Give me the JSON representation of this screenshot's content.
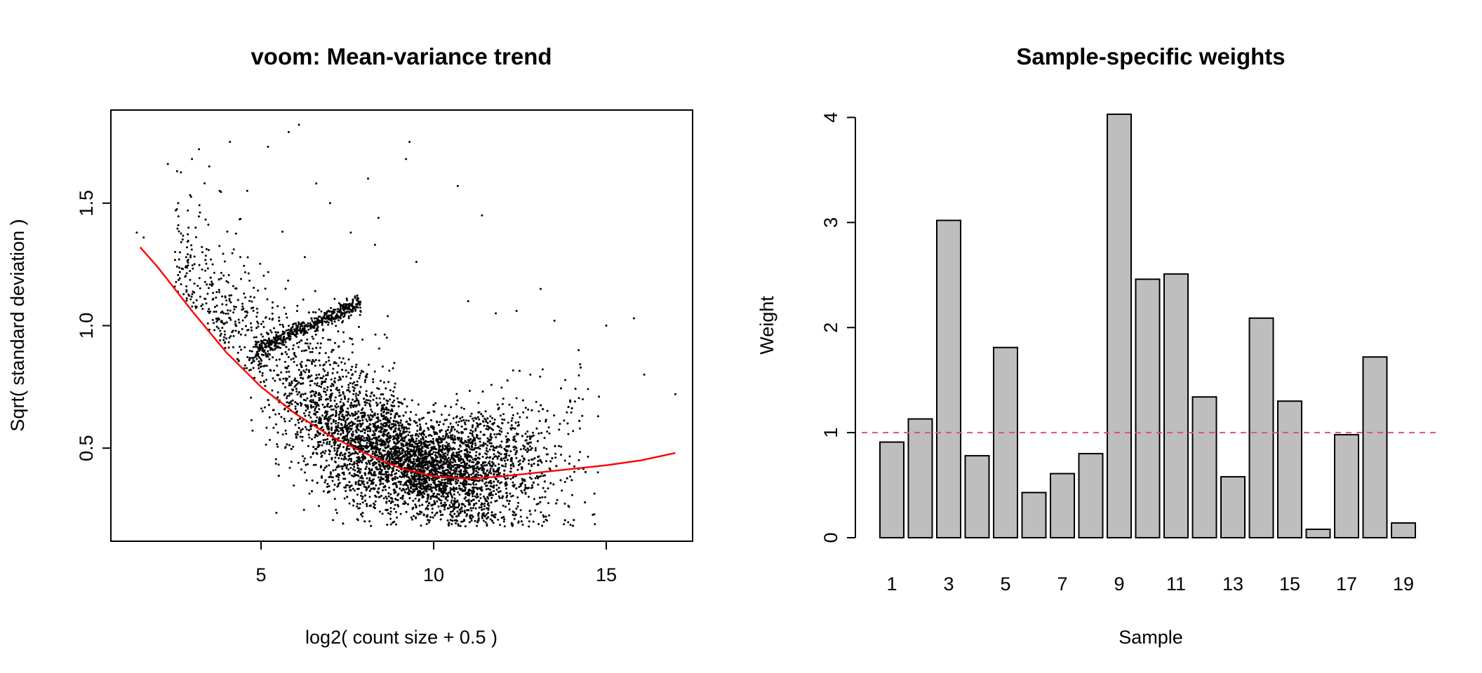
{
  "chart_data": [
    {
      "type": "scatter",
      "title": "voom: Mean-variance trend",
      "xlabel": "log2( count size + 0.5 )",
      "ylabel": "Sqrt( standard deviation )",
      "xlim": [
        0.65,
        17.5
      ],
      "ylim": [
        0.12,
        1.88
      ],
      "xticks": [
        5,
        10,
        15
      ],
      "yticks": [
        0.5,
        1.0,
        1.5
      ],
      "xtick_labels": [
        "5",
        "10",
        "15"
      ],
      "ytick_labels": [
        "0.5",
        "1.0",
        "1.5"
      ],
      "grid": false,
      "point_color": "#000000",
      "trend_color": "#ff0000",
      "trend_line": {
        "x": [
          1.5,
          2,
          3,
          4,
          5,
          6,
          7,
          8,
          9,
          10,
          11,
          12,
          13,
          14,
          15,
          16,
          17
        ],
        "y": [
          1.32,
          1.24,
          1.06,
          0.89,
          0.75,
          0.64,
          0.55,
          0.48,
          0.42,
          0.385,
          0.375,
          0.385,
          0.4,
          0.415,
          0.43,
          0.45,
          0.48
        ]
      },
      "points": [
        [
          1.4,
          1.38
        ],
        [
          1.6,
          1.36
        ],
        [
          2.3,
          1.66
        ],
        [
          2.6,
          1.5
        ],
        [
          3.0,
          1.68
        ],
        [
          3.2,
          1.72
        ],
        [
          3.5,
          1.65
        ],
        [
          3.8,
          1.55
        ],
        [
          4.1,
          1.75
        ],
        [
          4.6,
          1.55
        ],
        [
          5.2,
          1.73
        ],
        [
          5.8,
          1.79
        ],
        [
          6.1,
          1.82
        ],
        [
          6.6,
          1.58
        ],
        [
          7.0,
          1.5
        ],
        [
          8.1,
          1.6
        ],
        [
          8.4,
          1.44
        ],
        [
          9.3,
          1.75
        ],
        [
          9.2,
          1.68
        ],
        [
          10.7,
          1.57
        ],
        [
          11.4,
          1.45
        ],
        [
          7.6,
          1.38
        ],
        [
          8.3,
          1.33
        ],
        [
          9.5,
          1.26
        ],
        [
          11.0,
          1.1
        ],
        [
          11.8,
          1.05
        ],
        [
          12.4,
          1.06
        ],
        [
          13.1,
          1.15
        ],
        [
          15.0,
          1.0
        ],
        [
          15.8,
          1.03
        ],
        [
          16.1,
          0.8
        ],
        [
          17.0,
          0.72
        ],
        [
          13.5,
          1.02
        ],
        [
          14.2,
          0.9
        ],
        [
          12.8,
          0.8
        ],
        [
          3.3,
          1.3
        ],
        [
          3.6,
          1.25
        ],
        [
          4.4,
          1.28
        ],
        [
          2.8,
          1.2
        ],
        [
          2.9,
          1.4
        ]
      ],
      "point_cloud": {
        "description_counts": "dense cloud of gene-level points",
        "x_center": 9.5,
        "band_x_range": [
          4.8,
          7.9
        ],
        "band_y_range": [
          0.9,
          1.09
        ]
      }
    },
    {
      "type": "bar",
      "title": "Sample-specific weights",
      "xlabel": "Sample",
      "ylabel": "Weight",
      "categories": [
        "1",
        "2",
        "3",
        "4",
        "5",
        "6",
        "7",
        "8",
        "9",
        "10",
        "11",
        "12",
        "13",
        "14",
        "15",
        "16",
        "17",
        "18",
        "19"
      ],
      "values": [
        0.91,
        1.13,
        3.02,
        0.78,
        1.81,
        0.43,
        0.61,
        0.8,
        4.03,
        2.46,
        2.51,
        1.34,
        0.58,
        2.09,
        1.3,
        0.08,
        0.98,
        1.72,
        0.14
      ],
      "xtick_labels": [
        "1",
        "3",
        "5",
        "7",
        "9",
        "11",
        "13",
        "15",
        "17",
        "19"
      ],
      "ylim": [
        0,
        4.03
      ],
      "yticks": [
        0,
        1,
        2,
        3,
        4
      ],
      "ytick_labels": [
        "0",
        "1",
        "2",
        "3",
        "4"
      ],
      "reference_line": 1,
      "bar_color": "#bebebe",
      "reference_line_color": "#df536b",
      "grid": false
    }
  ]
}
